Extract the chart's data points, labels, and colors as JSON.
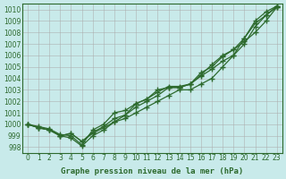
{
  "x": [
    0,
    1,
    2,
    3,
    4,
    5,
    6,
    7,
    8,
    9,
    10,
    11,
    12,
    13,
    14,
    15,
    16,
    17,
    18,
    19,
    20,
    21,
    22,
    23
  ],
  "line1": [
    1000.0,
    999.7,
    999.5,
    999.0,
    998.8,
    998.1,
    999.0,
    999.5,
    1000.2,
    1000.5,
    1001.0,
    1001.5,
    1002.0,
    1002.5,
    1003.0,
    1003.0,
    1003.5,
    1004.0,
    1005.0,
    1006.0,
    1007.0,
    1008.5,
    1009.5,
    1010.2
  ],
  "line2": [
    1000.0,
    999.7,
    999.5,
    999.0,
    999.2,
    998.5,
    999.3,
    999.8,
    1000.5,
    1000.8,
    1001.5,
    1002.0,
    1002.5,
    1003.2,
    1003.2,
    1003.5,
    1004.2,
    1004.8,
    1005.5,
    1006.0,
    1007.5,
    1008.8,
    1009.5,
    1010.3
  ],
  "line3": [
    1000.0,
    999.8,
    999.6,
    999.1,
    999.0,
    998.2,
    999.5,
    1000.0,
    1001.0,
    1001.2,
    1001.8,
    1002.2,
    1002.8,
    1003.3,
    1003.3,
    1003.5,
    1004.5,
    1005.0,
    1005.9,
    1006.5,
    1007.2,
    1008.0,
    1009.0,
    1010.2
  ],
  "line4": [
    1000.0,
    999.7,
    999.5,
    999.0,
    999.2,
    998.5,
    999.2,
    999.7,
    1000.2,
    1000.8,
    1001.8,
    1002.2,
    1003.0,
    1003.2,
    1003.2,
    1003.5,
    1004.3,
    1005.2,
    1006.0,
    1006.5,
    1007.5,
    1009.0,
    1009.8,
    1010.3
  ],
  "line_color": "#2d6a2d",
  "bg_color": "#c8eaea",
  "grid_color": "#aaaaaa",
  "ylabel_ticks": [
    998,
    999,
    1000,
    1001,
    1002,
    1003,
    1004,
    1005,
    1006,
    1007,
    1008,
    1009,
    1010
  ],
  "xlabel": "Graphe pression niveau de la mer (hPa)",
  "ylim": [
    997.5,
    1010.5
  ],
  "xlim": [
    -0.5,
    23.5
  ]
}
